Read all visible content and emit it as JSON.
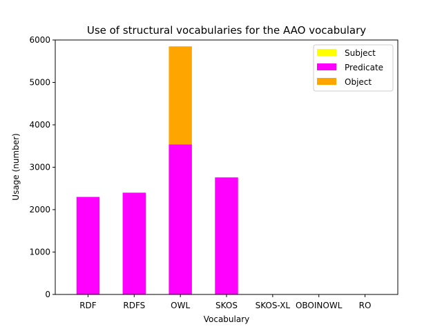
{
  "chart_data": {
    "type": "bar",
    "stacked": true,
    "title": "Use of structural vocabularies for the AAO vocabulary",
    "xlabel": "Vocabulary",
    "ylabel": "Usage (number)",
    "categories": [
      "RDF",
      "RDFS",
      "OWL",
      "SKOS",
      "SKOS-XL",
      "OBOINOWL",
      "RO"
    ],
    "ylim": [
      0,
      6000
    ],
    "yticks": [
      0,
      1000,
      2000,
      3000,
      4000,
      5000,
      6000
    ],
    "grid": false,
    "legend_position": "top-right",
    "series": [
      {
        "name": "Subject",
        "color": "#ffff00",
        "values": [
          0,
          0,
          0,
          0,
          0,
          0,
          0
        ]
      },
      {
        "name": "Predicate",
        "color": "#ff00ff",
        "values": [
          2300,
          2400,
          3540,
          2760,
          0,
          0,
          0
        ]
      },
      {
        "name": "Object",
        "color": "#ffa500",
        "values": [
          0,
          0,
          2310,
          0,
          0,
          0,
          0
        ]
      }
    ]
  }
}
